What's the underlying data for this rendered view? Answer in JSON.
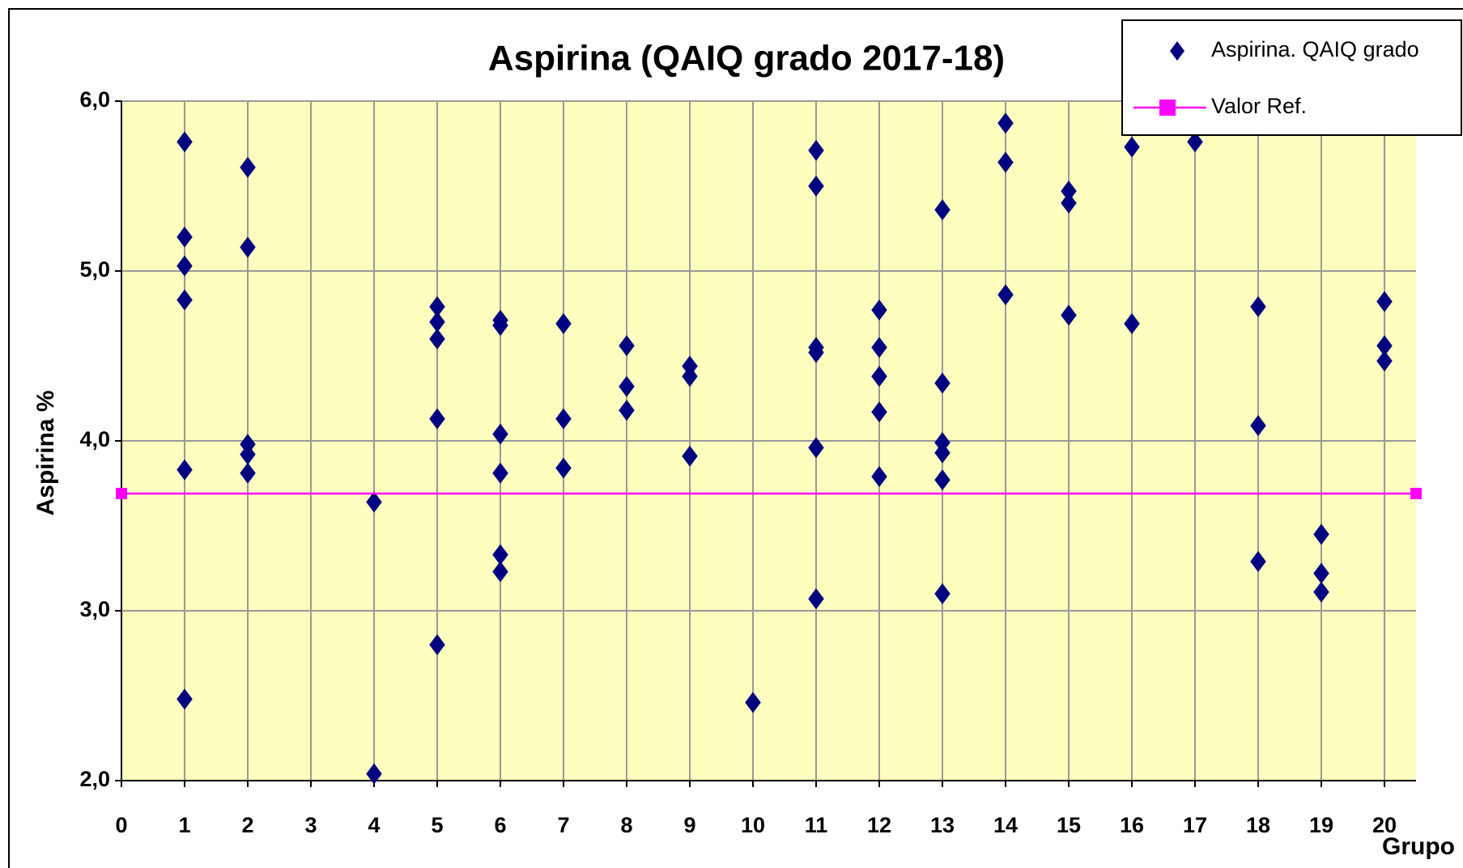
{
  "chart_data": {
    "type": "scatter",
    "title": "Aspirina (QAIQ grado 2017-18)",
    "x_label": "Grupo",
    "y_label": "Aspirina %",
    "xlim": [
      0,
      20.5
    ],
    "ylim": [
      2,
      6
    ],
    "xticks": [
      0,
      1,
      2,
      3,
      4,
      5,
      6,
      7,
      8,
      9,
      10,
      11,
      12,
      13,
      14,
      15,
      16,
      17,
      18,
      19,
      20
    ],
    "yticks": [
      {
        "value": 2,
        "label": "2,0"
      },
      {
        "value": 3,
        "label": "3,0"
      },
      {
        "value": 4,
        "label": "4,0"
      },
      {
        "value": 5,
        "label": "5,0"
      },
      {
        "value": 6,
        "label": "6,0"
      }
    ],
    "grid": true,
    "legend": "upper right",
    "plot_background": "#ffffc0",
    "series": [
      {
        "name": "Aspirina. QAIQ grado",
        "color": "#000080",
        "marker": "diamond",
        "x": [
          1,
          1,
          1,
          1,
          1,
          1,
          2,
          2,
          2,
          2,
          2,
          4,
          4,
          5,
          5,
          5,
          5,
          5,
          6,
          6,
          6,
          6,
          6,
          6,
          7,
          7,
          7,
          8,
          8,
          8,
          9,
          9,
          9,
          10,
          11,
          11,
          11,
          11,
          11,
          11,
          12,
          12,
          12,
          12,
          12,
          13,
          13,
          13,
          13,
          13,
          13,
          14,
          14,
          14,
          15,
          15,
          15,
          16,
          16,
          17,
          18,
          18,
          18,
          19,
          19,
          19,
          20,
          20,
          20
        ],
        "values": [
          5.76,
          5.2,
          5.03,
          4.83,
          3.83,
          2.48,
          5.61,
          5.14,
          3.98,
          3.92,
          3.81,
          3.64,
          2.04,
          4.79,
          4.7,
          4.6,
          4.13,
          2.8,
          4.71,
          4.68,
          4.04,
          3.81,
          3.33,
          3.23,
          4.69,
          4.13,
          3.84,
          4.56,
          4.32,
          4.18,
          4.44,
          4.38,
          3.91,
          2.46,
          5.71,
          5.5,
          4.55,
          4.52,
          3.96,
          3.07,
          4.77,
          4.55,
          4.38,
          4.17,
          3.79,
          5.36,
          4.34,
          3.99,
          3.93,
          3.77,
          3.1,
          5.87,
          5.64,
          4.86,
          5.47,
          5.4,
          4.74,
          5.73,
          4.69,
          5.76,
          4.79,
          4.09,
          3.29,
          3.45,
          3.22,
          3.11,
          4.82,
          4.56,
          4.47
        ]
      },
      {
        "name": "Valor Ref.",
        "color": "#ff00ff",
        "marker": "square",
        "line": true,
        "x": [
          0,
          20.5
        ],
        "values": [
          3.69,
          3.69
        ]
      }
    ]
  }
}
